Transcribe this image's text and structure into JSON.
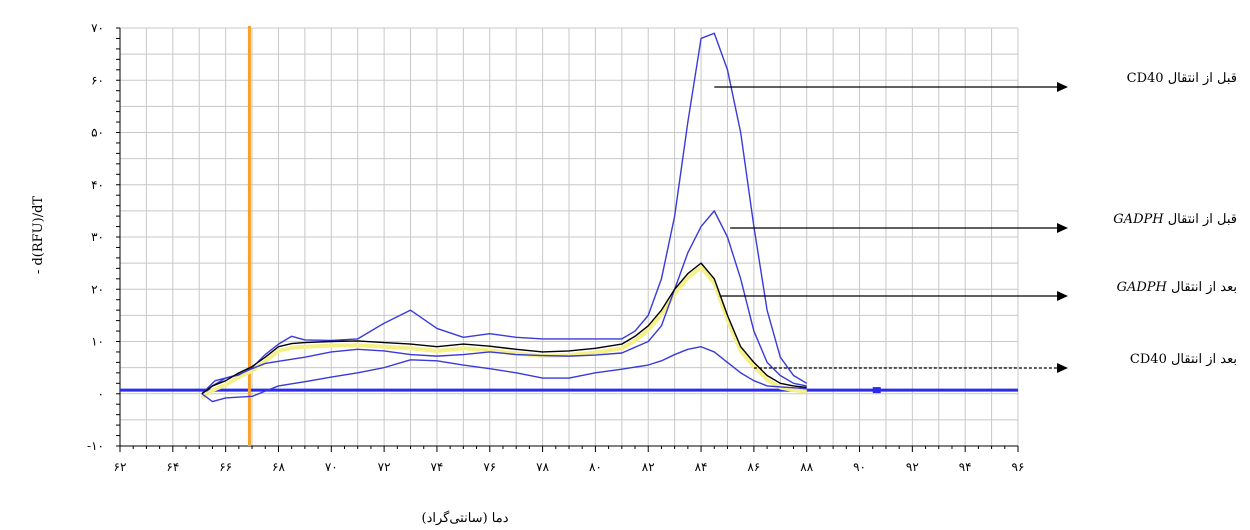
{
  "chart_data": {
    "type": "line",
    "xlabel": "دما (سانتی‌گراد)",
    "ylabel": "- d(RFU)/dT",
    "xlim": [
      62,
      96
    ],
    "ylim": [
      -10,
      70
    ],
    "grid": true,
    "x_ticks": [
      {
        "value": 62,
        "label": "۶۲"
      },
      {
        "value": 64,
        "label": "۶۴"
      },
      {
        "value": 66,
        "label": "۶۶"
      },
      {
        "value": 68,
        "label": "۶۸"
      },
      {
        "value": 70,
        "label": "۷۰"
      },
      {
        "value": 72,
        "label": "۷۲"
      },
      {
        "value": 74,
        "label": "۷۴"
      },
      {
        "value": 76,
        "label": "۷۶"
      },
      {
        "value": 78,
        "label": "۷۸"
      },
      {
        "value": 80,
        "label": "۸۰"
      },
      {
        "value": 82,
        "label": "۸۲"
      },
      {
        "value": 84,
        "label": "۸۴"
      },
      {
        "value": 86,
        "label": "۸۶"
      },
      {
        "value": 88,
        "label": "۸۸"
      },
      {
        "value": 90,
        "label": "۹۰"
      },
      {
        "value": 92,
        "label": "۹۲"
      },
      {
        "value": 94,
        "label": "۹۴"
      },
      {
        "value": 96,
        "label": "۹۶"
      }
    ],
    "y_ticks": [
      {
        "value": -10,
        "label": "-۱۰"
      },
      {
        "value": 0,
        "label": "۰"
      },
      {
        "value": 10,
        "label": "۱۰"
      },
      {
        "value": 20,
        "label": "۲۰"
      },
      {
        "value": 30,
        "label": "۳۰"
      },
      {
        "value": 40,
        "label": "۴۰"
      },
      {
        "value": 50,
        "label": "۵۰"
      },
      {
        "value": 60,
        "label": "۶۰"
      },
      {
        "value": 70,
        "label": "۷۰"
      }
    ],
    "threshold_x": 66.9,
    "baseline_y": 0.7,
    "series": [
      {
        "color": "#3a3ad8",
        "points": [
          [
            65.1,
            0
          ],
          [
            65.5,
            1.5
          ],
          [
            66,
            3
          ],
          [
            66.5,
            3.6
          ],
          [
            67,
            5
          ],
          [
            67.5,
            7.5
          ],
          [
            68,
            9.5
          ],
          [
            68.5,
            11
          ],
          [
            69,
            10.3
          ],
          [
            70,
            10.2
          ],
          [
            71,
            10.5
          ],
          [
            72,
            13.5
          ],
          [
            73,
            16
          ],
          [
            74,
            12.5
          ],
          [
            75,
            10.8
          ],
          [
            76,
            11.5
          ],
          [
            77,
            10.8
          ],
          [
            78,
            10.5
          ],
          [
            79,
            10.5
          ],
          [
            80,
            10.5
          ],
          [
            81,
            10.5
          ],
          [
            81.5,
            12
          ],
          [
            82,
            15
          ],
          [
            82.5,
            22
          ],
          [
            83,
            34
          ],
          [
            83.5,
            52
          ],
          [
            84,
            68
          ],
          [
            84.5,
            69
          ],
          [
            85,
            62
          ],
          [
            85.5,
            50
          ],
          [
            86,
            32
          ],
          [
            86.5,
            16
          ],
          [
            87,
            7
          ],
          [
            87.5,
            3.5
          ],
          [
            88,
            2
          ]
        ]
      },
      {
        "color": "#3a3ad8",
        "points": [
          [
            65.1,
            0
          ],
          [
            65.6,
            2.5
          ],
          [
            66,
            3
          ],
          [
            66.5,
            3.7
          ],
          [
            67,
            4.8
          ],
          [
            67.5,
            5.8
          ],
          [
            68,
            6.2
          ],
          [
            69,
            7
          ],
          [
            70,
            8
          ],
          [
            71,
            8.5
          ],
          [
            72,
            8.2
          ],
          [
            73,
            7.5
          ],
          [
            74,
            7.2
          ],
          [
            75,
            7.5
          ],
          [
            76,
            8
          ],
          [
            77,
            7.5
          ],
          [
            78,
            7.3
          ],
          [
            79,
            7.2
          ],
          [
            80,
            7.4
          ],
          [
            81,
            7.8
          ],
          [
            82,
            10
          ],
          [
            82.5,
            13
          ],
          [
            83,
            20
          ],
          [
            83.5,
            27
          ],
          [
            84,
            32
          ],
          [
            84.5,
            35
          ],
          [
            85,
            30
          ],
          [
            85.5,
            22
          ],
          [
            86,
            12
          ],
          [
            86.5,
            6
          ],
          [
            87,
            3.5
          ],
          [
            87.5,
            2
          ],
          [
            88,
            1.5
          ]
        ]
      },
      {
        "color": "#3a3ad8",
        "points": [
          [
            65.1,
            0
          ],
          [
            65.5,
            -1.5
          ],
          [
            66,
            -0.8
          ],
          [
            67,
            -0.5
          ],
          [
            67.5,
            0.5
          ],
          [
            68,
            1.5
          ],
          [
            69,
            2.3
          ],
          [
            70,
            3.2
          ],
          [
            71,
            4
          ],
          [
            72,
            5
          ],
          [
            73,
            6.5
          ],
          [
            74,
            6.3
          ],
          [
            75,
            5.5
          ],
          [
            76,
            4.8
          ],
          [
            77,
            4
          ],
          [
            78,
            3
          ],
          [
            79,
            3
          ],
          [
            80,
            4
          ],
          [
            81,
            4.7
          ],
          [
            82,
            5.5
          ],
          [
            82.5,
            6.3
          ],
          [
            83,
            7.5
          ],
          [
            83.5,
            8.5
          ],
          [
            84,
            9
          ],
          [
            84.5,
            8
          ],
          [
            85,
            6
          ],
          [
            85.5,
            4
          ],
          [
            86,
            2.5
          ],
          [
            86.5,
            1.5
          ],
          [
            87,
            1.3
          ],
          [
            88,
            1
          ]
        ]
      },
      {
        "color": "#000000",
        "points": [
          [
            65.1,
            0
          ],
          [
            65.5,
            1.5
          ],
          [
            66,
            2.5
          ],
          [
            66.5,
            4
          ],
          [
            67,
            5.2
          ],
          [
            67.5,
            7
          ],
          [
            68,
            9
          ],
          [
            68.5,
            9.6
          ],
          [
            69,
            9.8
          ],
          [
            70,
            10
          ],
          [
            71,
            10.1
          ],
          [
            72,
            9.8
          ],
          [
            73,
            9.5
          ],
          [
            74,
            9
          ],
          [
            75,
            9.5
          ],
          [
            76,
            9.1
          ],
          [
            77,
            8.5
          ],
          [
            78,
            8
          ],
          [
            79,
            8.2
          ],
          [
            80,
            8.7
          ],
          [
            81,
            9.5
          ],
          [
            81.5,
            11
          ],
          [
            82,
            13
          ],
          [
            82.5,
            16
          ],
          [
            83,
            20
          ],
          [
            83.5,
            23
          ],
          [
            84,
            25
          ],
          [
            84.5,
            22
          ],
          [
            85,
            15
          ],
          [
            85.5,
            9
          ],
          [
            86,
            6
          ],
          [
            86.5,
            3.5
          ],
          [
            87,
            2
          ],
          [
            87.5,
            1.5
          ],
          [
            88,
            1.2
          ]
        ]
      }
    ],
    "legend": [
      {
        "gene": "CD40",
        "text": "قبل از انتقال",
        "gene_italic": false,
        "target_x": 84.5,
        "target_y": 57.7,
        "dashed": false
      },
      {
        "gene": "GADPH",
        "text": "قبل از انتقال",
        "gene_italic": true,
        "target_x": 85.1,
        "target_y": 29.6,
        "dashed": false
      },
      {
        "gene": "GADPH",
        "text": "بعد از انتقال",
        "gene_italic": true,
        "target_x": 84.7,
        "target_y": 18.9,
        "dashed": false
      },
      {
        "gene": "CD40",
        "text": "بعد از انتقال",
        "gene_italic": false,
        "target_x": 86.0,
        "target_y": 5.1,
        "dashed": true
      }
    ]
  }
}
